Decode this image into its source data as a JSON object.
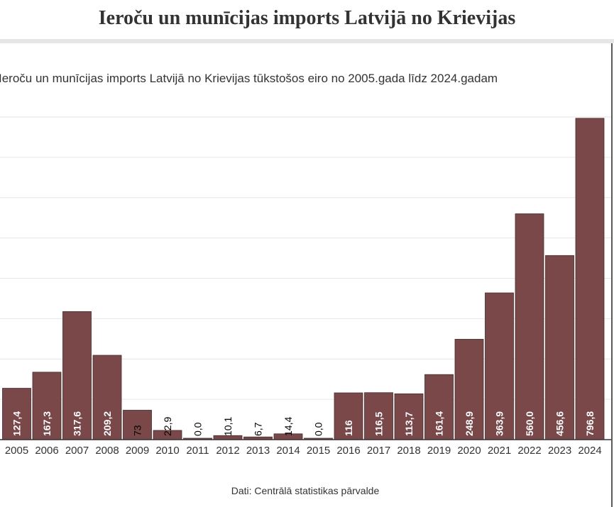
{
  "page": {
    "title": "Ieroču un munīcijas imports Latvijā no Krievijas",
    "source": "Dati: Centrālā statistikas pārvalde"
  },
  "chart_data": {
    "type": "bar",
    "title": "Ieroču un munīcijas imports Latvijā no Krievijas tūkstošos eiro no 2005.gada līdz 2024.gadam",
    "categories": [
      "2005",
      "2006",
      "2007",
      "2008",
      "2009",
      "2010",
      "2011",
      "2012",
      "2013",
      "2014",
      "2015",
      "2016",
      "2017",
      "2018",
      "2019",
      "2020",
      "2021",
      "2022",
      "2023",
      "2024"
    ],
    "values": [
      127.4,
      167.3,
      317.6,
      209.2,
      73,
      22.9,
      0.0,
      10.1,
      6.7,
      14.4,
      0.0,
      116,
      116.5,
      113.7,
      161.4,
      248.9,
      363.9,
      560.0,
      456.6,
      796.8
    ],
    "value_labels": [
      "127,4",
      "167,3",
      "317,6",
      "209,2",
      "73",
      "22,9",
      "0,0",
      "10,1",
      "6,7",
      "14,4",
      "0,0",
      "116",
      "116,5",
      "113,7",
      "161,4",
      "248,9",
      "363,9",
      "560,0",
      "456,6",
      "796,8"
    ],
    "ylim": [
      0,
      800
    ],
    "grid": true,
    "colors": {
      "bar": "#7a4849",
      "label_inside": "#ffffff",
      "label_outside": "#000000",
      "grid": "#e6e6e6",
      "axis": "#333333"
    }
  }
}
